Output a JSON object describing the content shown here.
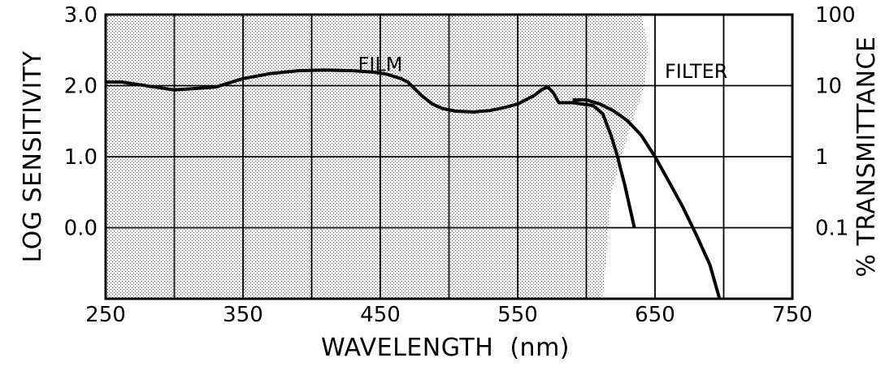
{
  "chart_data": {
    "type": "line",
    "xlabel": "WAVELENGTH  (nm)",
    "ylabel": "LOG SENSITIVITY",
    "y2label": "% TRANSMITTANCE",
    "xlim": [
      250,
      750
    ],
    "ylim": [
      -1.0,
      3.0
    ],
    "y2_scale": "log",
    "y2lim": [
      0.01,
      100
    ],
    "grid": true,
    "x_ticks": [
      {
        "value": 250,
        "label": "250"
      },
      {
        "value": 350,
        "label": "350"
      },
      {
        "value": 450,
        "label": "450"
      },
      {
        "value": 550,
        "label": "550"
      },
      {
        "value": 650,
        "label": "650"
      },
      {
        "value": 750,
        "label": "750"
      }
    ],
    "y_ticks": [
      {
        "value": 3.0,
        "label": "3.0"
      },
      {
        "value": 2.0,
        "label": "2.0"
      },
      {
        "value": 1.0,
        "label": "1.0"
      },
      {
        "value": 0.0,
        "label": "0.0"
      }
    ],
    "y2_ticks": [
      {
        "value": 100,
        "label": "100"
      },
      {
        "value": 10,
        "label": "10"
      },
      {
        "value": 1,
        "label": "1"
      },
      {
        "value": 0.1,
        "label": "0.1"
      }
    ],
    "annotations": [
      {
        "text": "FILM",
        "x": 450,
        "y": 2.3
      },
      {
        "text": "FILTER",
        "x": 680,
        "y": 2.2
      }
    ],
    "series": [
      {
        "name": "FILM",
        "axis": "left",
        "style": "shaded region",
        "x": [
          250,
          262,
          300,
          330,
          350,
          370,
          390,
          410,
          430,
          445,
          455,
          465,
          470,
          480,
          488,
          495,
          505,
          518,
          530,
          540,
          550,
          562,
          568,
          572,
          576,
          580,
          590,
          605,
          612,
          618,
          622,
          628,
          635
        ],
        "y": [
          2.05,
          2.05,
          1.94,
          1.98,
          2.1,
          2.17,
          2.21,
          2.22,
          2.21,
          2.19,
          2.16,
          2.1,
          2.05,
          1.86,
          1.74,
          1.68,
          1.64,
          1.63,
          1.65,
          1.69,
          1.74,
          1.86,
          1.95,
          1.98,
          1.9,
          1.76,
          1.76,
          1.72,
          1.6,
          1.3,
          1.05,
          0.6,
          0.0
        ]
      },
      {
        "name": "FILTER",
        "axis": "right",
        "style": "line",
        "x": [
          590,
          600,
          610,
          620,
          630,
          640,
          650,
          660,
          670,
          680,
          690,
          697
        ],
        "y": [
          6.3,
          6.3,
          5.5,
          4.4,
          3.2,
          2.0,
          1.0,
          0.45,
          0.2,
          0.08,
          0.03,
          0.01
        ]
      }
    ]
  }
}
